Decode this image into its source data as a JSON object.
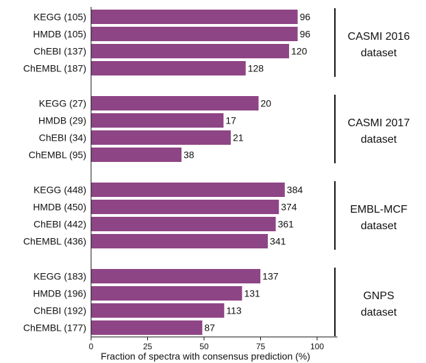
{
  "chart_data": {
    "type": "bar",
    "orientation": "horizontal",
    "xlabel": "Fraction of spectra with consensus prediction (%)",
    "xlim": [
      0,
      109
    ],
    "xticks": [
      "0",
      "25",
      "50",
      "75",
      "100"
    ],
    "bar_color": "#8E4585",
    "grid": false,
    "groups": [
      {
        "label": [
          "CASMI 2016",
          "dataset"
        ],
        "bars": [
          {
            "category": "KEGG (105)",
            "value": 91.4,
            "label": "96"
          },
          {
            "category": "HMDB (105)",
            "value": 91.4,
            "label": "96"
          },
          {
            "category": "ChEBI (137)",
            "value": 87.6,
            "label": "120"
          },
          {
            "category": "ChEMBL (187)",
            "value": 68.4,
            "label": "128"
          }
        ]
      },
      {
        "label": [
          "CASMI 2017",
          "dataset"
        ],
        "bars": [
          {
            "category": "KEGG (27)",
            "value": 74.1,
            "label": "20"
          },
          {
            "category": "HMDB (29)",
            "value": 58.6,
            "label": "17"
          },
          {
            "category": "ChEBI (34)",
            "value": 61.8,
            "label": "21"
          },
          {
            "category": "ChEMBL (95)",
            "value": 40.0,
            "label": "38"
          }
        ]
      },
      {
        "label": [
          "EMBL-MCF",
          "dataset"
        ],
        "bars": [
          {
            "category": "KEGG (448)",
            "value": 85.7,
            "label": "384"
          },
          {
            "category": "HMDB (450)",
            "value": 83.1,
            "label": "374"
          },
          {
            "category": "ChEBI (442)",
            "value": 81.7,
            "label": "361"
          },
          {
            "category": "ChEMBL (436)",
            "value": 78.2,
            "label": "341"
          }
        ]
      },
      {
        "label": [
          "GNPS",
          "dataset"
        ],
        "bars": [
          {
            "category": "KEGG (183)",
            "value": 74.9,
            "label": "137"
          },
          {
            "category": "HMDB (196)",
            "value": 66.8,
            "label": "131"
          },
          {
            "category": "ChEBI (192)",
            "value": 58.9,
            "label": "113"
          },
          {
            "category": "ChEMBL (177)",
            "value": 49.2,
            "label": "87"
          }
        ]
      }
    ]
  }
}
